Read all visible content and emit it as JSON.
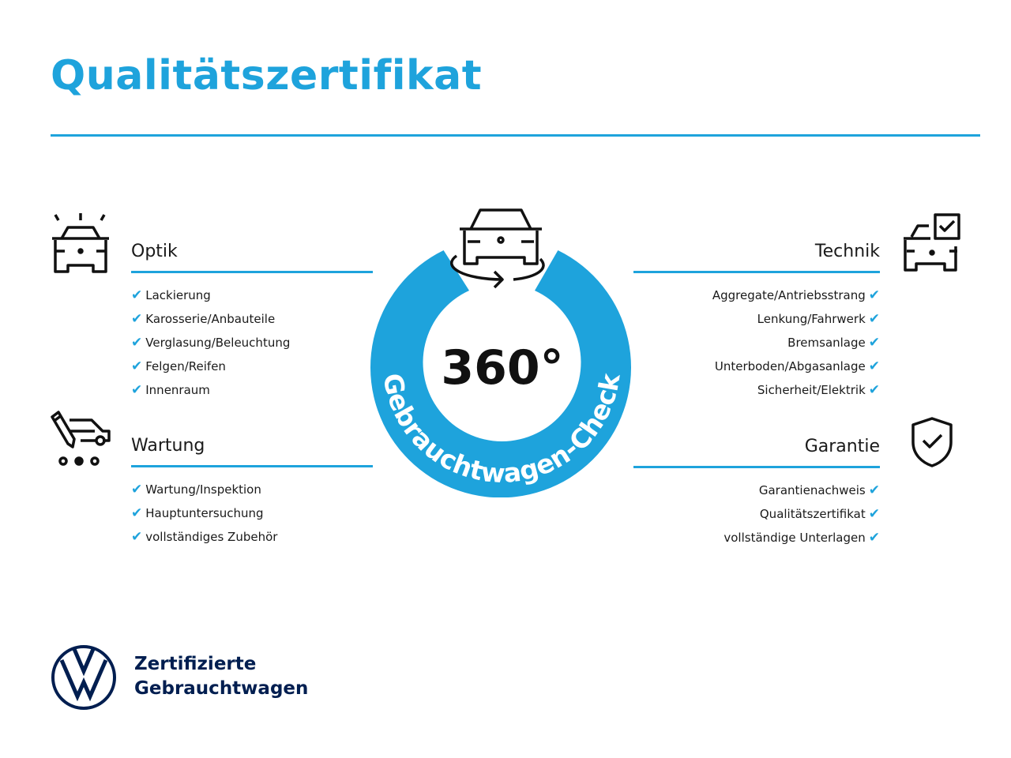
{
  "title": "Qualitätszertifikat",
  "colors": {
    "accent": "#1ea3dc",
    "brand_navy": "#001e50",
    "text": "#1a1a1a"
  },
  "center_badge": {
    "degrees": "360°",
    "ring_text": "Gebrauchtwagen-Check",
    "icon": "car-rotate-icon"
  },
  "sections": {
    "optik": {
      "heading": "Optik",
      "icon": "car-lights-icon",
      "items": [
        "Lackierung",
        "Karosserie/Anbauteile",
        "Verglasung/Beleuchtung",
        "Felgen/Reifen",
        "Innenraum"
      ]
    },
    "wartung": {
      "heading": "Wartung",
      "icon": "service-van-pen-icon",
      "items": [
        "Wartung/Inspektion",
        "Hauptuntersuchung",
        "vollständiges Zubehör"
      ]
    },
    "technik": {
      "heading": "Technik",
      "icon": "car-checkbox-icon",
      "items": [
        "Aggregate/Antriebsstrang",
        "Lenkung/Fahrwerk",
        "Bremsanlage",
        "Unterboden/Abgasanlage",
        "Sicherheit/Elektrik"
      ]
    },
    "garantie": {
      "heading": "Garantie",
      "icon": "shield-check-icon",
      "items": [
        "Garantienachweis",
        "Qualitätszertifikat",
        "vollständige Unterlagen"
      ]
    }
  },
  "check_mark": "✔",
  "footer": {
    "line1": "Zertifizierte",
    "line2": "Gebrauchtwagen",
    "logo": "VW"
  }
}
